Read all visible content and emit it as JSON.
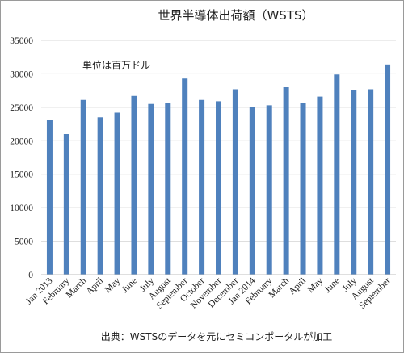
{
  "chart_data": {
    "type": "bar",
    "title": "世界半導体出荷額（WSTS）",
    "unit_note": "単位は百万ドル",
    "source": "出典：WSTSのデータを元にセミコンポータルが加工",
    "ylim": [
      0,
      35000
    ],
    "yticks": [
      0,
      5000,
      10000,
      15000,
      20000,
      25000,
      30000,
      35000
    ],
    "grid": true,
    "legend": "none",
    "bar_color": "#4f81bd",
    "categories": [
      "Jan 2013",
      "February",
      "March",
      "April",
      "May",
      "June",
      "July",
      "August",
      "September",
      "October",
      "November",
      "December",
      "Jan 2014",
      "February",
      "March",
      "April",
      "May",
      "June",
      "July",
      "August",
      "September"
    ],
    "values": [
      23100,
      21000,
      26100,
      23500,
      24200,
      26700,
      25500,
      25600,
      29300,
      26100,
      25900,
      27700,
      25000,
      25300,
      28000,
      25600,
      26600,
      29900,
      27600,
      27700,
      31400
    ]
  }
}
